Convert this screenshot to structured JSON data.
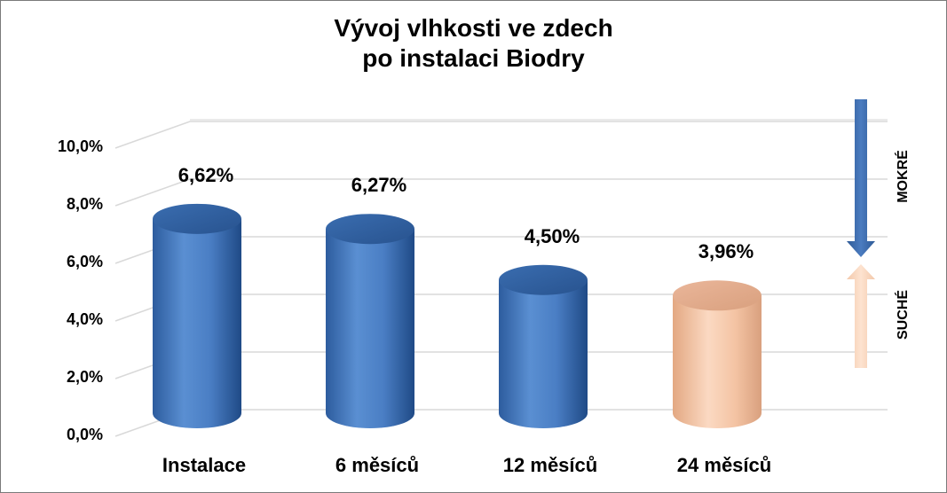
{
  "chart_data": {
    "type": "bar",
    "title": "Vývoj vlhkosti ve zdech",
    "subtitle": "po instalaci Biodry",
    "categories": [
      "Instalace",
      "6 měsíců",
      "12 měsíců",
      "24 měsíců"
    ],
    "values": [
      6.62,
      6.27,
      4.5,
      3.96
    ],
    "data_labels": [
      "6,62%",
      "6,27%",
      "4,50%",
      "3,96%"
    ],
    "ylim": [
      0,
      10
    ],
    "yticks": [
      "0,0%",
      "2,0%",
      "4,0%",
      "6,0%",
      "8,0%",
      "10,0%"
    ],
    "grid": true,
    "colors": {
      "blue_series": "#4a7ec4",
      "highlight_bar": "#f2c09f",
      "arrow_down": "#3a66a8",
      "arrow_up": "#f7d3b8"
    },
    "bar_colors": [
      "blue",
      "blue",
      "blue",
      "peach"
    ],
    "side_labels": {
      "wet": "MOKRÉ",
      "dry": "SUCHÉ"
    }
  }
}
